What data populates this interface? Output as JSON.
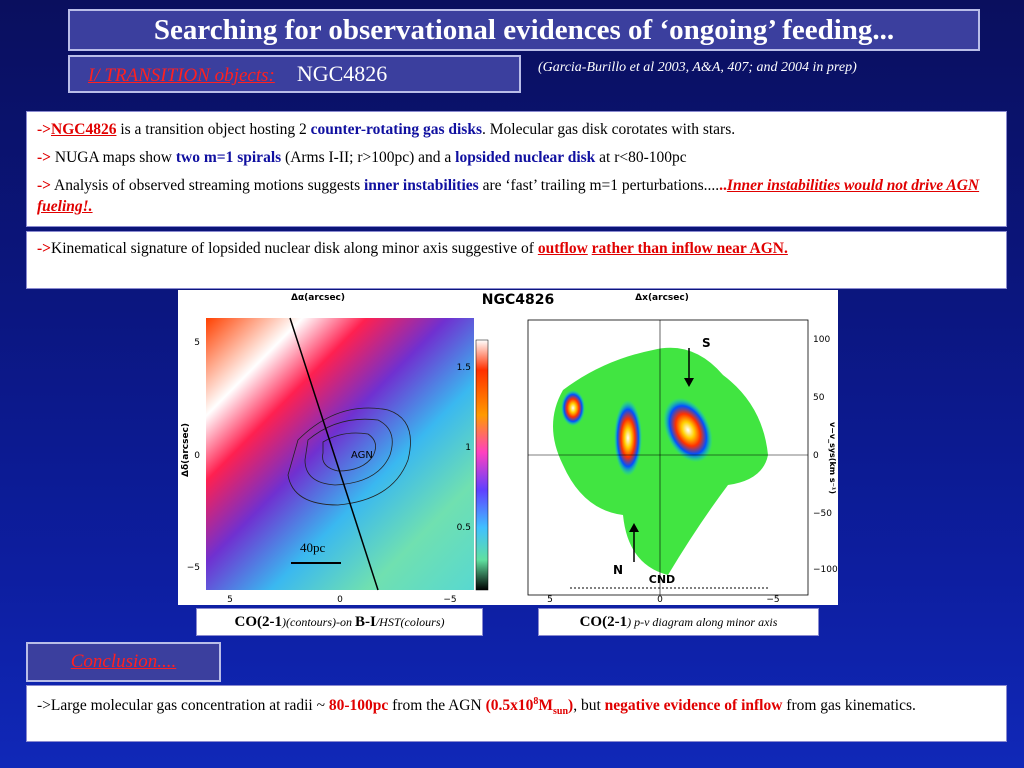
{
  "title": "Searching for observational evidences of ‘ongoing’ feeding...",
  "subheader": {
    "section": "I/ TRANSITION objects:",
    "object": "NGC4826"
  },
  "citation": "(Garcia-Burillo et al 2003, A&A, 407; and 2004 in prep)",
  "bullets": {
    "b1": {
      "arrow": "->",
      "name": "NGC4826",
      "t1": " is a transition object  hosting 2 ",
      "k1": "counter-rotating gas disks",
      "t2": ". Molecular gas disk corotates with stars."
    },
    "b2": {
      "arrow": "->",
      "t1": " NUGA maps show ",
      "k1": "two m=1 spirals",
      "t2": " (Arms I-II; r>100pc)  and  a ",
      "k2": "lopsided nuclear disk",
      "t3": " at r<80-100pc"
    },
    "b3": {
      "arrow": "->",
      "t1": " Analysis of observed streaming motions suggests ",
      "k1": "inner instabilities",
      "t2": "  are ‘fast’ trailing m=1 perturbations....",
      "dots": "..",
      "k2": "Inner instabilities would not drive AGN fueling!."
    },
    "b4": {
      "arrow": "->",
      "t1": "Kinematical signature of lopsided nuclear disk along minor axis suggestive of  ",
      "k1": " outflow",
      "t2": " ",
      "k2": "rather than inflow near AGN."
    }
  },
  "figure": {
    "name": "NGC4826",
    "left_panel": {
      "xlabel": "Δα(arcsec)",
      "ylabel": "Δδ(arcsec)",
      "xticks": [
        "5",
        "0",
        "−5"
      ],
      "yticks": [
        "5",
        "0",
        "−5"
      ],
      "colorbar_ticks": [
        "1.5",
        "1",
        "0.5"
      ],
      "label_agn": "AGN",
      "scale_label": "40pc"
    },
    "right_panel": {
      "xlabel": "Δx(arcsec)",
      "ylabel": "v−v_sys(km s⁻¹)",
      "xticks": [
        "5",
        "0",
        "−5"
      ],
      "yticks": [
        "100",
        "50",
        "0",
        "−50",
        "−100"
      ],
      "label_s": "S",
      "label_n": "N",
      "label_cnd": "CND"
    }
  },
  "captions": {
    "c1_bold": "CO(2-1",
    "c1_it": ")(contours)-on ",
    "c1_bold2": "B-I",
    "c1_it2": "/HST(colours)",
    "c2_bold": "CO(2-1",
    "c2_it": ") p-v diagram along minor axis"
  },
  "conclusion": {
    "header": "Conclusion....",
    "t1": "->Large molecular gas concentration at radii ~ ",
    "k1": "80-100pc",
    "t2": " from the AGN ",
    "m1": "(0.5x10",
    "m_sup": "8",
    "m2": "M",
    "m_sub": "sun",
    "m3": ")",
    "t3": ", but ",
    "k2": "negative evidence of inflow",
    "t4": " from gas kinematics."
  },
  "colors": {
    "accent_red": "#e00000",
    "keyword_blue": "#1010a0",
    "bar_fill": "#3b3f9e"
  }
}
